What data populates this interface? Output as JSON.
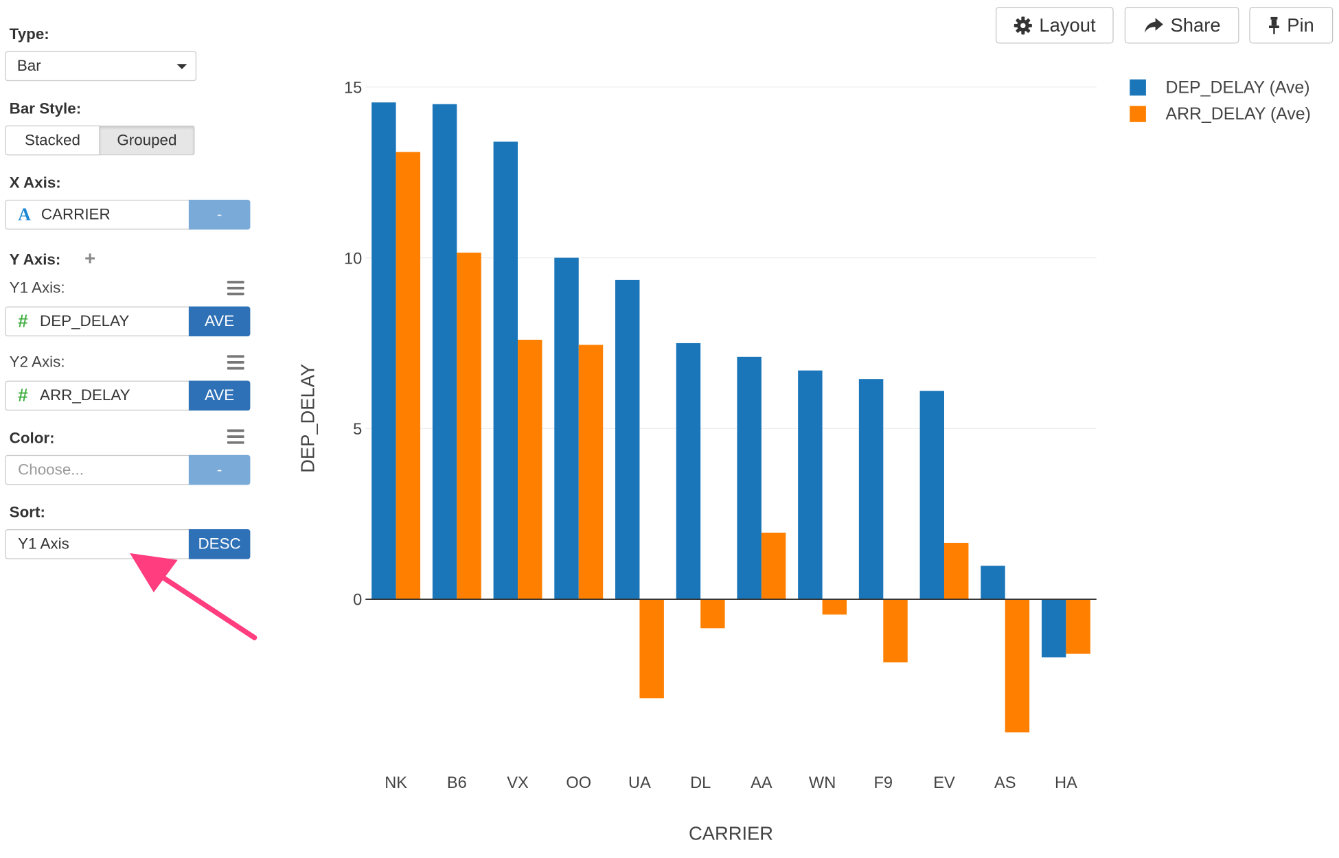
{
  "sidebar": {
    "type_label": "Type:",
    "type_value": "Bar",
    "bar_style_label": "Bar Style:",
    "bar_style_options": [
      "Stacked",
      "Grouped"
    ],
    "bar_style_selected": "Grouped",
    "x_axis_label": "X Axis:",
    "x_axis_field": "CARRIER",
    "x_axis_btn": "-",
    "y_axis_label": "Y Axis:",
    "y1_label": "Y1 Axis:",
    "y1_field": "DEP_DELAY",
    "y1_agg": "AVE",
    "y2_label": "Y2 Axis:",
    "y2_field": "ARR_DELAY",
    "y2_agg": "AVE",
    "color_label": "Color:",
    "color_placeholder": "Choose...",
    "color_btn": "-",
    "sort_label": "Sort:",
    "sort_value": "Y1 Axis",
    "sort_order": "DESC"
  },
  "toolbar": {
    "layout_label": "Layout",
    "share_label": "Share",
    "pin_label": "Pin"
  },
  "colors": {
    "series1": "#1a76b8",
    "series2": "#ff8000",
    "annotation_arrow": "#ff3d7f"
  },
  "chart_data": {
    "type": "bar",
    "categories": [
      "NK",
      "B6",
      "VX",
      "OO",
      "UA",
      "DL",
      "AA",
      "WN",
      "F9",
      "EV",
      "AS",
      "HA"
    ],
    "series": [
      {
        "name": "DEP_DELAY (Ave)",
        "values": [
          14.55,
          14.5,
          13.4,
          10.0,
          9.35,
          7.5,
          7.1,
          6.7,
          6.45,
          6.1,
          0.98,
          -1.7
        ]
      },
      {
        "name": "ARR_DELAY (Ave)",
        "values": [
          13.1,
          10.15,
          7.6,
          7.45,
          -2.9,
          -0.85,
          1.95,
          -0.45,
          -1.85,
          1.65,
          -3.9,
          -1.6
        ]
      }
    ],
    "xlabel": "CARRIER",
    "ylabel": "DEP_DELAY",
    "yticks": [
      0,
      5,
      10,
      15
    ],
    "ylim": [
      -5,
      15.5
    ],
    "grid": true,
    "legend_position": "top-right"
  }
}
